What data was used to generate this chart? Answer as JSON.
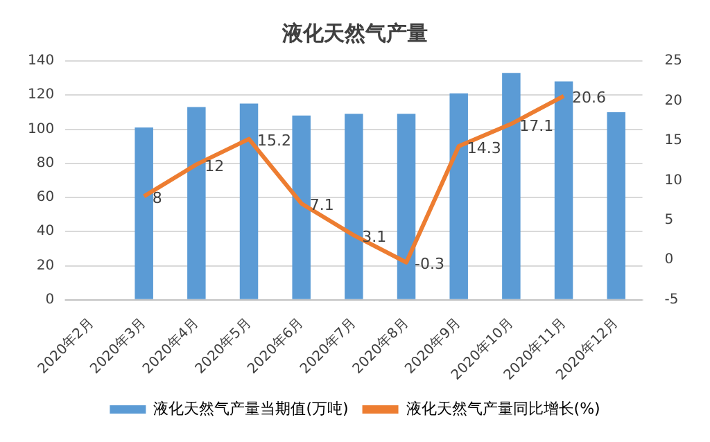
{
  "chart_data": {
    "type": "bar",
    "title": "液化天然气产量",
    "categories": [
      "2020年2月",
      "2020年3月",
      "2020年4月",
      "2020年5月",
      "2020年6月",
      "2020年7月",
      "2020年8月",
      "2020年9月",
      "2020年10月",
      "2020年11月",
      "2020年12月"
    ],
    "series": [
      {
        "name": "液化天然气产量当期值(万吨)",
        "color": "#5b9bd5",
        "values": [
          null,
          101,
          113,
          115,
          108,
          109,
          109,
          121,
          133,
          128,
          110
        ]
      },
      {
        "name": "液化天然气产量同比增长(%)",
        "type": "line",
        "axis": "y2",
        "color": "#ed7d31",
        "values": [
          null,
          8,
          12,
          15.2,
          7.1,
          3.1,
          -0.3,
          14.3,
          17.1,
          20.6,
          null
        ],
        "value_labels": [
          null,
          "8",
          "12",
          "15.2",
          "7.1",
          "3.1",
          "-0.3",
          "14.3",
          "17.1",
          "20.6",
          null
        ]
      }
    ],
    "ylim": [
      0,
      140
    ],
    "yticks": [
      0,
      20,
      40,
      60,
      80,
      100,
      120,
      140
    ],
    "y2lim": [
      -5,
      25
    ],
    "y2ticks": [
      -5,
      0,
      5,
      10,
      15,
      20,
      25
    ],
    "grid": "y",
    "legend": "bottom",
    "marker": "none",
    "line_style": "solid"
  }
}
